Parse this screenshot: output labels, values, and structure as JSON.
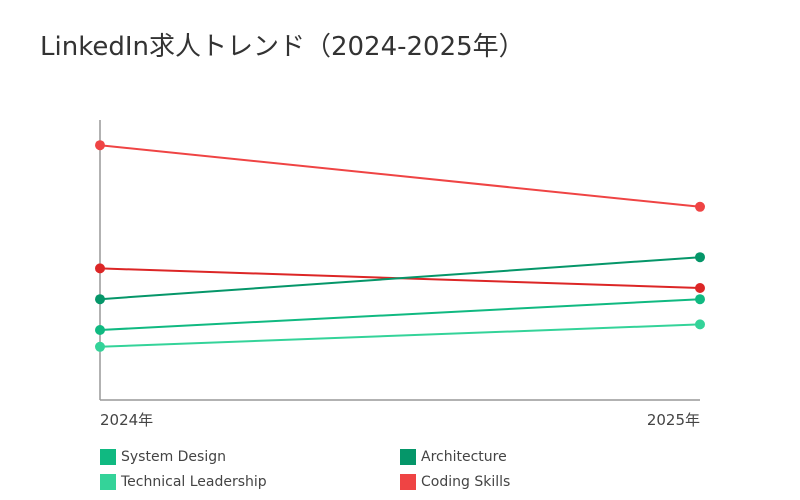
{
  "chart_data": {
    "type": "line",
    "title": "LinkedIn求人トレンド（2024-2025年）",
    "categories": [
      "2024年",
      "2025年"
    ],
    "ylim": [
      0,
      100
    ],
    "grid": false,
    "legend_placement": "bottom",
    "series": [
      {
        "name": "Coding Skills",
        "color": "#ef4444",
        "values": [
          91,
          69
        ]
      },
      {
        "name": "",
        "color": "#dc2626",
        "values": [
          47,
          40
        ]
      },
      {
        "name": "Architecture",
        "color": "#059669",
        "values": [
          36,
          51
        ]
      },
      {
        "name": "System Design",
        "color": "#10b981",
        "values": [
          25,
          36
        ]
      },
      {
        "name": "Technical Leadership",
        "color": "#34d399",
        "values": [
          19,
          27
        ]
      }
    ],
    "legend": [
      {
        "label": "System Design",
        "color": "#10b981"
      },
      {
        "label": "Architecture",
        "color": "#059669"
      },
      {
        "label": "Technical Leadership",
        "color": "#34d399"
      },
      {
        "label": "Coding Skills",
        "color": "#ef4444"
      }
    ]
  }
}
